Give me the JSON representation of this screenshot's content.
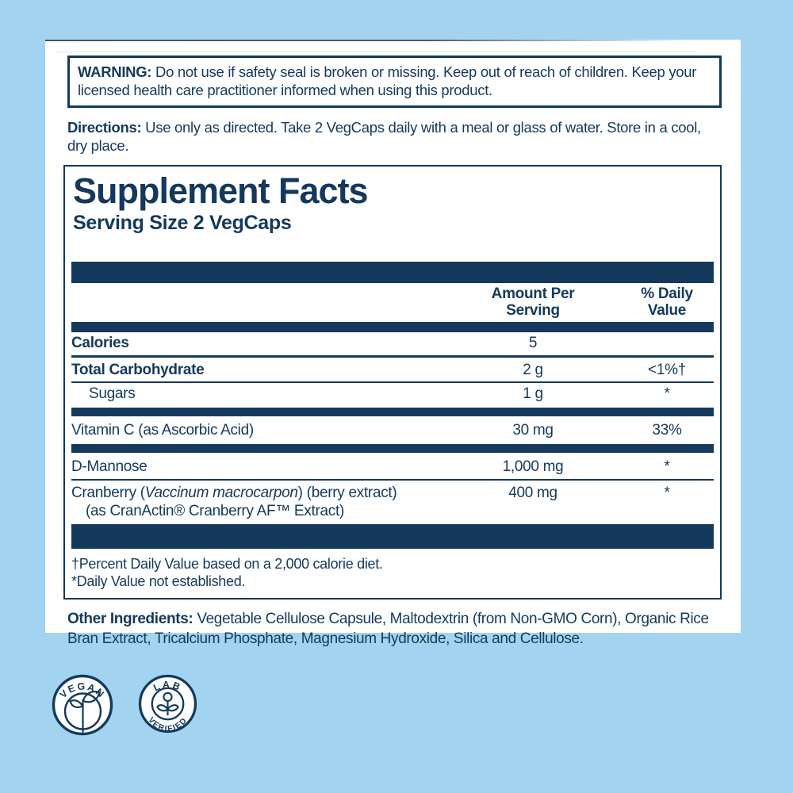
{
  "colors": {
    "background": "#a3d4ef",
    "navy": "#14395d",
    "card": "#ffffff"
  },
  "warning": {
    "label": "WARNING:",
    "text": " Do not use if safety seal is broken or missing. Keep out of reach of children. Keep your licensed health care practitioner informed when using this product."
  },
  "directions": {
    "label": "Directions:",
    "text": " Use only as directed. Take 2 VegCaps daily with a meal or glass of water. Store in a cool, dry place."
  },
  "supplement_facts": {
    "title": "Supplement Facts",
    "serving_size": "Serving Size 2 VegCaps",
    "columns": {
      "amount": "Amount Per\nServing",
      "daily": "% Daily\nValue"
    },
    "rows": [
      {
        "name": "Calories",
        "bold": true,
        "amount": "5",
        "daily": "",
        "divider": "line"
      },
      {
        "name": "Total Carbohydrate",
        "bold": true,
        "amount": "2 g",
        "daily": "<1%†",
        "divider": "hair"
      },
      {
        "name": "Sugars",
        "indent": true,
        "amount": "1 g",
        "daily": "*",
        "divider": "bar"
      },
      {
        "name": "Vitamin C (as Ascorbic Acid)",
        "amount": "30 mg",
        "daily": "33%",
        "divider": "bar"
      },
      {
        "name": "D-Mannose",
        "amount": "1,000 mg",
        "daily": "*",
        "divider": "line2px"
      },
      {
        "parts": [
          {
            "t": "Cranberry (",
            "i": false
          },
          {
            "t": "Vaccinum macrocarpon",
            "i": true
          },
          {
            "t": ") (berry extract)",
            "i": false
          }
        ],
        "line2": "(as CranActin® Cranberry AF™ Extract)",
        "amount": "400 mg",
        "daily": "*",
        "divider": "thickbar"
      }
    ],
    "footnotes": [
      "†Percent Daily Value based on a 2,000 calorie diet.",
      "*Daily Value not established."
    ]
  },
  "other_ingredients": {
    "label": "Other Ingredients:",
    "text": " Vegetable Cellulose Capsule, Maltodextrin (from Non-GMO Corn), Organic Rice Bran Extract, Tricalcium Phosphate, Magnesium Hydroxide, Silica and Cellulose."
  },
  "badges": {
    "vegan": {
      "label": "VEGAN"
    },
    "lab_verified": {
      "top": "LAB",
      "bottom": "VERIFIED"
    }
  }
}
